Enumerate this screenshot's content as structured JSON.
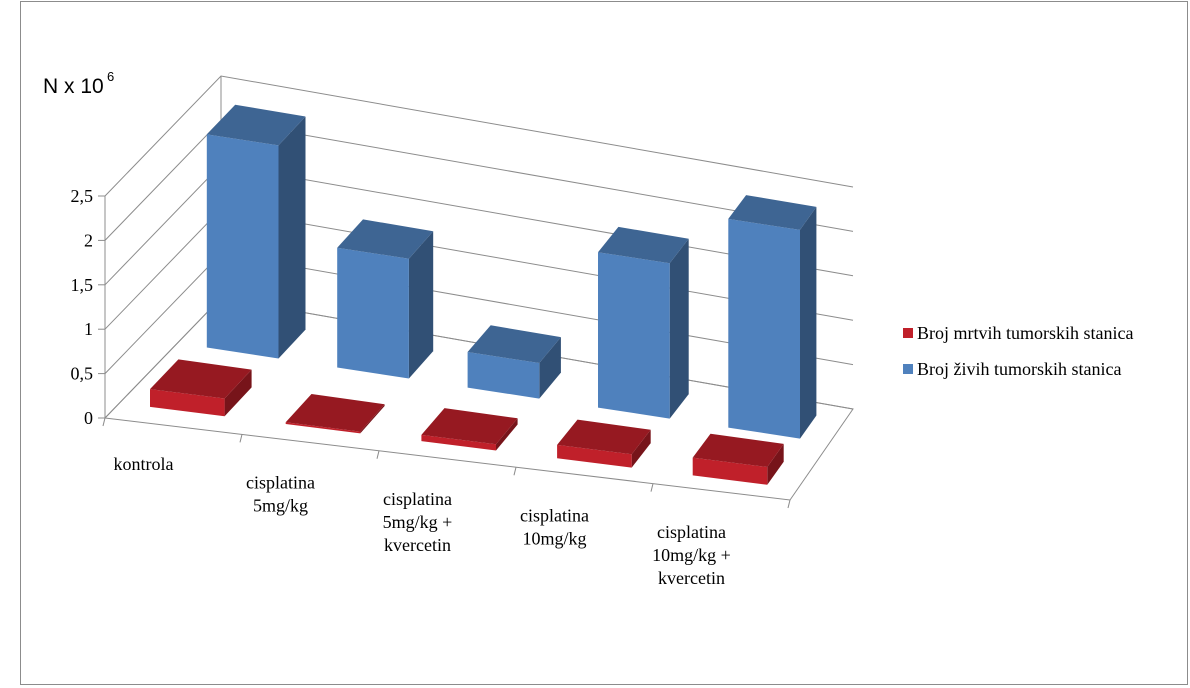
{
  "chart_data": {
    "type": "bar",
    "title": "",
    "ylabel": "N x 10",
    "ylabel_superscript": "6",
    "ylim": [
      0,
      2.5
    ],
    "yticks": [
      "0",
      "0,5",
      "1",
      "1,5",
      "2",
      "2,5"
    ],
    "categories": [
      [
        "kontrola"
      ],
      [
        "cisplatina",
        "5mg/kg"
      ],
      [
        "cisplatina",
        "5mg/kg +",
        "kvercetin"
      ],
      [
        "cisplatina",
        "10mg/kg"
      ],
      [
        "cisplatina",
        "10mg/kg +",
        "kvercetin"
      ]
    ],
    "series": [
      {
        "name": "Broj mrtvih tumorskih stanica",
        "color": "#c0202a",
        "values": [
          0.2,
          0.02,
          0.07,
          0.15,
          0.2
        ]
      },
      {
        "name": "Broj živih tumorskih stanica",
        "color": "#4f81bd",
        "values": [
          2.4,
          1.35,
          0.4,
          1.75,
          2.35
        ]
      }
    ],
    "grid": true,
    "legend_position": "right",
    "style": "3d-clustered-column"
  }
}
